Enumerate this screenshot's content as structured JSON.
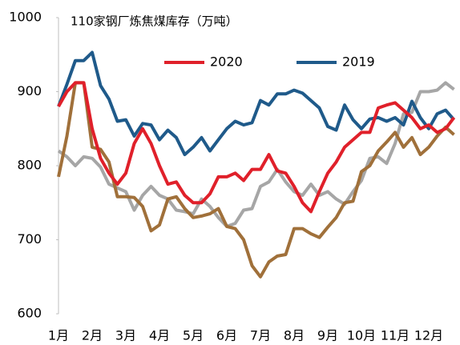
{
  "chart_data": {
    "type": "line",
    "title": "110家钢厂炼焦煤库存（万吨）",
    "categories": [
      "1月",
      null,
      null,
      null,
      "2月",
      null,
      null,
      null,
      "3月",
      null,
      null,
      null,
      "4月",
      null,
      null,
      null,
      "5月",
      null,
      null,
      null,
      "6月",
      null,
      null,
      null,
      "7月",
      null,
      null,
      null,
      "8月",
      null,
      null,
      null,
      "9月",
      null,
      null,
      null,
      "10月",
      null,
      null,
      null,
      "11月",
      null,
      null,
      null,
      "12月",
      null,
      null,
      null
    ],
    "series": [
      {
        "name": "2020",
        "color": "#e0202a",
        "values": [
          880,
          900,
          912,
          912,
          850,
          810,
          790,
          775,
          790,
          830,
          850,
          830,
          800,
          775,
          778,
          760,
          750,
          750,
          762,
          785,
          785,
          790,
          780,
          795,
          795,
          815,
          793,
          790,
          772,
          750,
          738,
          765,
          790,
          805,
          825,
          835,
          845,
          845,
          878,
          882,
          885,
          875,
          865,
          850,
          855,
          845,
          850,
          865
        ]
      },
      {
        "name": "2019",
        "color": "#1f5a8a",
        "values": [
          880,
          910,
          942,
          942,
          953,
          908,
          890,
          860,
          862,
          840,
          857,
          855,
          835,
          848,
          838,
          815,
          825,
          838,
          820,
          835,
          850,
          860,
          855,
          858,
          888,
          882,
          897,
          897,
          902,
          898,
          888,
          878,
          853,
          848,
          882,
          862,
          850,
          863,
          865,
          860,
          865,
          855,
          887,
          865,
          850,
          870,
          875,
          862
        ]
      },
      {
        "color": "#a6a6a6",
        "values": [
          820,
          812,
          800,
          812,
          810,
          798,
          775,
          770,
          765,
          740,
          760,
          772,
          760,
          755,
          740,
          738,
          735,
          755,
          745,
          730,
          718,
          722,
          740,
          742,
          772,
          778,
          795,
          778,
          765,
          760,
          775,
          760,
          765,
          755,
          748,
          765,
          780,
          810,
          812,
          803,
          830,
          870,
          872,
          900,
          900,
          902,
          912,
          903
        ]
      },
      {
        "color": "#a0703a",
        "values": [
          785,
          840,
          912,
          912,
          825,
          822,
          805,
          758,
          758,
          757,
          745,
          712,
          720,
          755,
          758,
          742,
          730,
          732,
          735,
          742,
          718,
          715,
          700,
          665,
          650,
          670,
          678,
          680,
          715,
          715,
          708,
          703,
          717,
          730,
          750,
          752,
          792,
          800,
          820,
          832,
          845,
          825,
          838,
          815,
          825,
          840,
          852,
          842
        ]
      }
    ],
    "ylim": [
      600,
      1000
    ],
    "yticks": [
      600,
      700,
      800,
      900,
      1000
    ],
    "grid": false
  }
}
